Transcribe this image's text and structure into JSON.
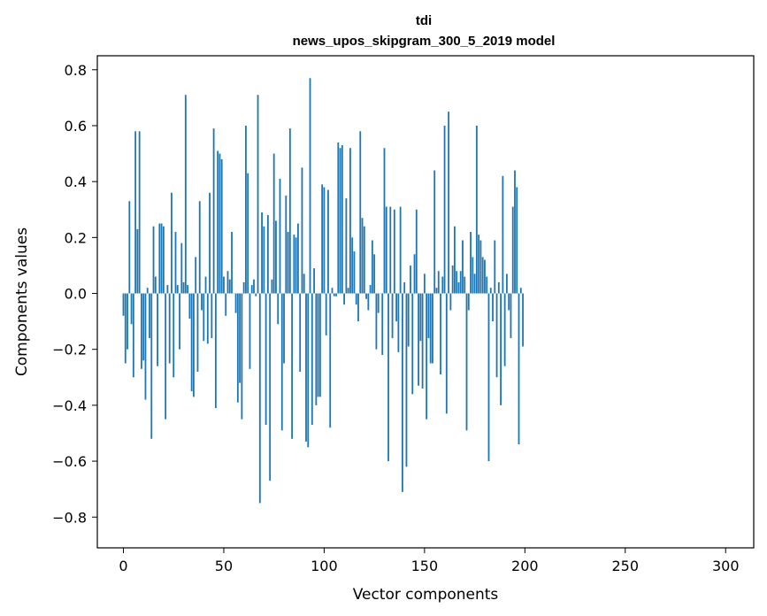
{
  "chart_data": {
    "type": "bar",
    "title_line1": "tdi",
    "title_line2": "news_upos_skipgram_300_5_2019 model",
    "xlabel": "Vector components",
    "ylabel": "Components values",
    "xlim": [
      -13,
      314
    ],
    "ylim": [
      -0.91,
      0.85
    ],
    "xticks": [
      0,
      50,
      100,
      150,
      200,
      250,
      300
    ],
    "xtick_labels": [
      "0",
      "50",
      "100",
      "150",
      "200",
      "250",
      "300"
    ],
    "yticks": [
      -0.8,
      -0.6,
      -0.4,
      -0.2,
      0.0,
      0.2,
      0.4,
      0.6,
      0.8
    ],
    "ytick_labels": [
      "−0.8",
      "−0.6",
      "−0.4",
      "−0.2",
      "0.0",
      "0.2",
      "0.4",
      "0.6",
      "0.8"
    ],
    "bar_color": "#1f77b4",
    "grid": false,
    "values": [
      -0.08,
      -0.25,
      -0.2,
      0.33,
      -0.11,
      -0.3,
      0.58,
      0.23,
      0.58,
      -0.27,
      -0.24,
      -0.38,
      0.02,
      -0.16,
      -0.52,
      0.24,
      0.06,
      -0.26,
      0.25,
      0.25,
      0.24,
      -0.45,
      0.03,
      -0.25,
      0.36,
      -0.3,
      0.22,
      0.03,
      -0.2,
      0.18,
      0.04,
      0.71,
      0.03,
      -0.09,
      -0.35,
      -0.37,
      0.13,
      -0.28,
      0.33,
      -0.06,
      -0.17,
      0.06,
      -0.18,
      0.36,
      -0.16,
      0.59,
      -0.41,
      0.51,
      0.5,
      0.48,
      0.06,
      -0.08,
      0.08,
      0.05,
      0.22,
      0.0,
      -0.07,
      -0.39,
      -0.32,
      -0.45,
      0.04,
      0.6,
      0.43,
      -0.27,
      0.03,
      0.05,
      -0.01,
      0.71,
      -0.75,
      0.29,
      0.24,
      -0.47,
      0.28,
      -0.67,
      0.05,
      0.5,
      0.26,
      -0.11,
      0.41,
      -0.49,
      -0.25,
      0.35,
      0.22,
      0.59,
      -0.52,
      0.21,
      0.2,
      0.25,
      -0.28,
      0.45,
      0.07,
      -0.53,
      -0.55,
      0.77,
      -0.47,
      0.09,
      -0.4,
      -0.37,
      -0.37,
      0.39,
      0.38,
      -0.15,
      0.37,
      -0.48,
      0.02,
      -0.01,
      -0.01,
      0.54,
      0.52,
      0.53,
      -0.04,
      0.34,
      0.02,
      0.52,
      0.2,
      0.15,
      -0.04,
      -0.1,
      0.58,
      0.27,
      0.24,
      -0.02,
      -0.06,
      0.03,
      0.19,
      0.14,
      -0.2,
      -0.07,
      0.0,
      -0.22,
      0.52,
      0.31,
      -0.6,
      0.31,
      -0.16,
      0.3,
      -0.1,
      -0.21,
      0.31,
      -0.71,
      0.04,
      -0.62,
      -0.19,
      0.1,
      -0.36,
      0.14,
      0.3,
      -0.33,
      -0.17,
      -0.34,
      0.07,
      -0.45,
      -0.16,
      -0.25,
      -0.25,
      0.44,
      0.02,
      0.08,
      -0.29,
      0.06,
      0.6,
      -0.43,
      0.65,
      -0.06,
      0.1,
      0.24,
      0.08,
      0.04,
      0.08,
      0.19,
      0.06,
      -0.49,
      -0.06,
      0.22,
      0.13,
      0.07,
      0.6,
      0.21,
      0.19,
      0.13,
      0.12,
      0.06,
      -0.6,
      0.02,
      -0.1,
      0.19,
      -0.3,
      0.04,
      -0.4,
      0.42,
      -0.26,
      0.07,
      -0.06,
      -0.16,
      0.31,
      0.44,
      0.38,
      -0.54,
      0.02,
      -0.19
    ]
  }
}
